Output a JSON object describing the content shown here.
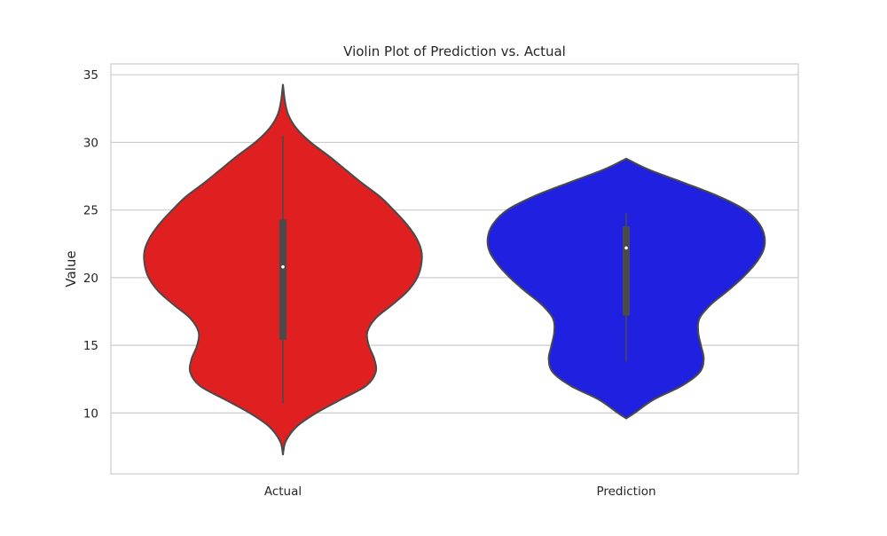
{
  "chart_data": {
    "type": "violin",
    "title": "Violin Plot of Prediction vs. Actual",
    "xlabel": "",
    "ylabel": "Value",
    "ylim": [
      5.5,
      35.8
    ],
    "yticks": [
      10,
      15,
      20,
      25,
      30,
      35
    ],
    "grid": "horizontal",
    "categories": [
      "Actual",
      "Prediction"
    ],
    "colors": [
      "#e02020",
      "#2020e0"
    ],
    "edge_color": "#4a4a4a",
    "series": [
      {
        "category": "Actual",
        "color": "#e02020",
        "box": {
          "whisker_low": 10.7,
          "q1": 15.4,
          "median": 20.8,
          "q3": 24.3,
          "whisker_high": 30.5
        },
        "density": [
          [
            6.9,
            0.0
          ],
          [
            7.9,
            0.02
          ],
          [
            9.0,
            0.1
          ],
          [
            10.0,
            0.24
          ],
          [
            11.0,
            0.42
          ],
          [
            12.0,
            0.6
          ],
          [
            13.0,
            0.67
          ],
          [
            14.0,
            0.66
          ],
          [
            15.0,
            0.62
          ],
          [
            16.0,
            0.61
          ],
          [
            17.0,
            0.67
          ],
          [
            18.0,
            0.79
          ],
          [
            19.0,
            0.9
          ],
          [
            20.0,
            0.97
          ],
          [
            21.0,
            1.0
          ],
          [
            22.0,
            1.0
          ],
          [
            23.0,
            0.96
          ],
          [
            24.0,
            0.89
          ],
          [
            25.0,
            0.8
          ],
          [
            26.0,
            0.7
          ],
          [
            27.0,
            0.57
          ],
          [
            28.0,
            0.45
          ],
          [
            29.0,
            0.33
          ],
          [
            30.0,
            0.2
          ],
          [
            31.0,
            0.1
          ],
          [
            32.0,
            0.04
          ],
          [
            33.0,
            0.015
          ],
          [
            34.3,
            0.0
          ]
        ]
      },
      {
        "category": "Prediction",
        "color": "#2020e0",
        "box": {
          "whisker_low": 13.8,
          "q1": 17.2,
          "median": 22.2,
          "q3": 23.8,
          "whisker_high": 24.8
        },
        "density": [
          [
            9.6,
            0.0
          ],
          [
            10.0,
            0.06
          ],
          [
            11.0,
            0.2
          ],
          [
            12.0,
            0.4
          ],
          [
            13.0,
            0.53
          ],
          [
            14.0,
            0.56
          ],
          [
            15.0,
            0.54
          ],
          [
            16.0,
            0.52
          ],
          [
            17.0,
            0.53
          ],
          [
            18.0,
            0.61
          ],
          [
            19.0,
            0.73
          ],
          [
            20.0,
            0.84
          ],
          [
            21.0,
            0.93
          ],
          [
            22.0,
            0.99
          ],
          [
            23.0,
            1.0
          ],
          [
            24.0,
            0.96
          ],
          [
            25.0,
            0.86
          ],
          [
            26.0,
            0.67
          ],
          [
            27.0,
            0.42
          ],
          [
            28.0,
            0.16
          ],
          [
            28.8,
            0.0
          ]
        ]
      }
    ]
  }
}
